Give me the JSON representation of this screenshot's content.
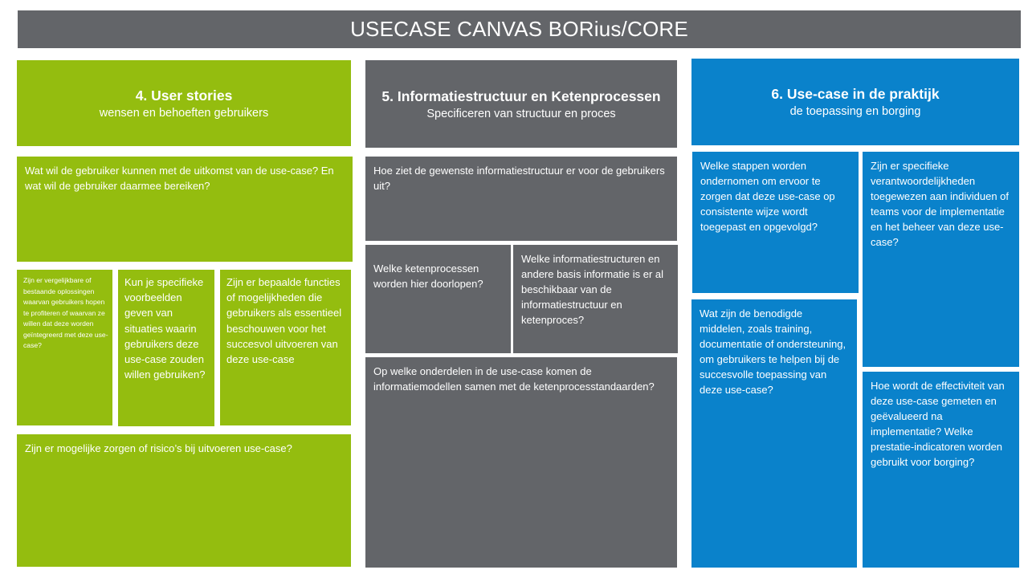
{
  "title": "USECASE CANVAS BORius/CORE",
  "sections": {
    "user_stories": {
      "title": "4. User stories",
      "subtitle": "wensen en behoeften gebruikers",
      "q_outcome": "Wat wil de gebruiker kunnen met de uitkomst van de use-case? En wat wil de gebruiker daarmee bereiken?",
      "q_comparable": "Zijn er vergelijkbare of bestaande oplossingen waarvan gebruikers hopen te profiteren of waarvan ze willen dat deze worden geïntegreerd met deze use-case?",
      "q_examples": "Kun je specifieke voorbeelden geven van situaties waarin gebruikers deze use-case zouden willen gebruiken?",
      "q_functions": "Zijn er bepaalde functies of mogelijkheden die gebruikers als essentieel beschouwen voor het succesvol uitvoeren van deze use-case",
      "q_risks": "Zijn er mogelijke zorgen of risico’s bij uitvoeren use-case?"
    },
    "information": {
      "title": "5. Informatiestructuur en Ketenprocessen",
      "subtitle": "Specificeren van structuur en proces",
      "q_structure": "Hoe ziet de gewenste informatiestructuur er voor de gebruikers uit?",
      "q_chain": "Welke ketenprocessen worden hier doorlopen?",
      "q_available": "Welke informatiestructuren en andere basis informatie is er al beschikbaar van de informatiestructuur en ketenproces?",
      "q_components": "Op welke onderdelen in de use-case komen de informatiemodellen samen met de ketenprocesstandaarden?"
    },
    "practice": {
      "title": "6. Use-case in de praktijk",
      "subtitle": "de toepassing en borging",
      "q_steps": "Welke stappen worden ondernomen om ervoor te zorgen dat deze use-case op consistente wijze wordt toegepast en opgevolgd?",
      "q_responsibilities": "Zijn er specifieke verantwoordelijkheden toegewezen aan individuen of teams voor de implementatie en het beheer van deze use-case?",
      "q_resources": "Wat zijn de benodigde middelen, zoals training, documentatie of ondersteuning, om gebruikers te helpen bij de succesvolle toepassing van deze use-case?",
      "q_effectiveness": "Hoe wordt de effectiviteit van deze use-case gemeten en geëvalueerd na implementatie? Welke prestatie-indicatoren worden gebruikt voor borging?"
    }
  },
  "colors": {
    "green": "#94bd0f",
    "grey": "#636569",
    "blue": "#0a82cb"
  }
}
